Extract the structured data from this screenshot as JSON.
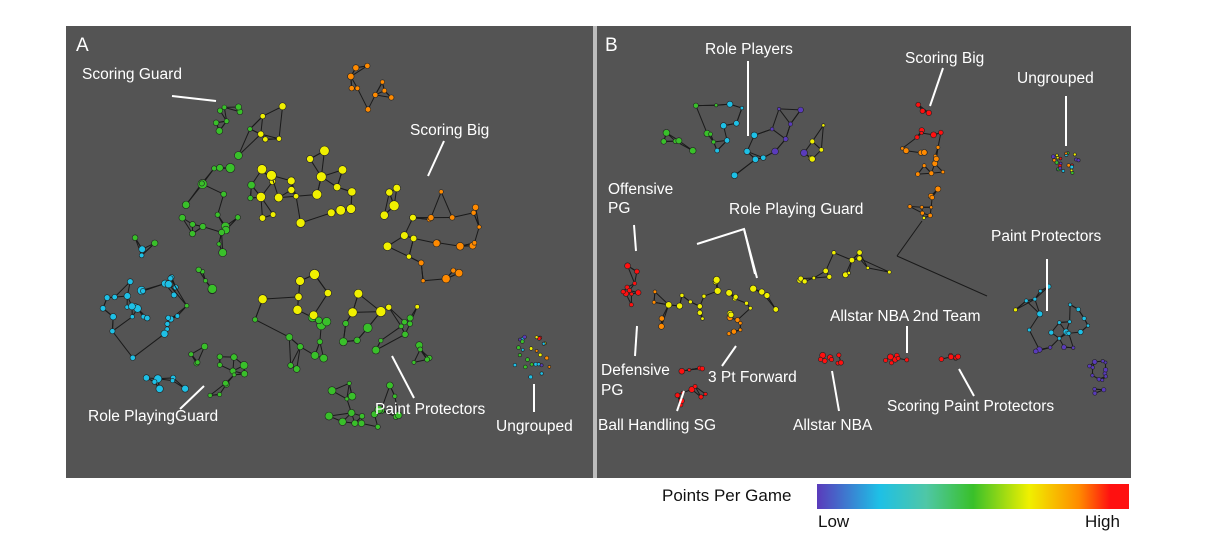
{
  "panels": {
    "a": {
      "letter": "A",
      "labels": [
        "Scoring Guard",
        "Scoring Big",
        "Role PlayingGuard",
        "Paint Protectors",
        "Ungrouped"
      ]
    },
    "b": {
      "letter": "B",
      "labels": [
        "Role Players",
        "Scoring Big",
        "Ungrouped",
        "Offensive",
        "PG",
        "Role Playing Guard",
        "Paint Protectors",
        "Allstar NBA 2nd Team",
        "Defensive",
        "PG",
        "3 Pt Forward",
        "Ball Handling SG",
        "Allstar NBA",
        "Scoring Paint Protectors"
      ]
    }
  },
  "legend": {
    "title": "Points Per Game",
    "low": "Low",
    "high": "High",
    "colors": [
      "#5a3bbb",
      "#1ec0e6",
      "#39c02a",
      "#f0f000",
      "#ff8a00",
      "#ff1010"
    ]
  }
}
